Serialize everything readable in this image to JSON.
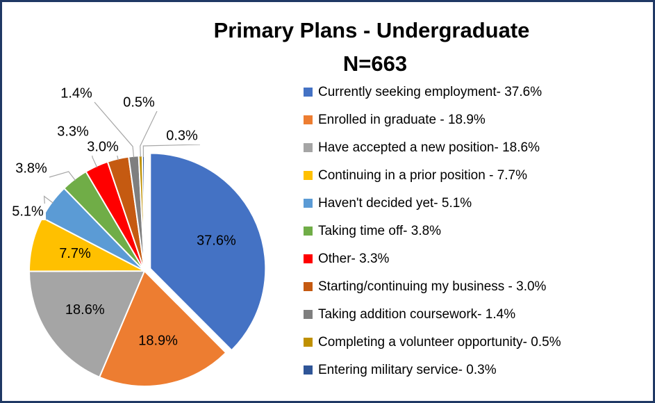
{
  "chart_data": {
    "type": "pie",
    "title": "Primary Plans - Undergraduate",
    "subtitle": "N=663",
    "categories": [
      "Currently seeking employment- 37.6%",
      "Enrolled in graduate - 18.9%",
      "Have accepted a new position- 18.6%",
      "Continuing in a prior position - 7.7%",
      "Haven't decided yet- 5.1%",
      "Taking time off- 3.8%",
      "Other- 3.3%",
      "Starting/continuing my business - 3.0%",
      "Taking addition coursework- 1.4%",
      "Completing a volunteer opportunity- 0.5%",
      "Entering military service- 0.3%"
    ],
    "values": [
      37.6,
      18.9,
      18.6,
      7.7,
      5.1,
      3.8,
      3.3,
      3.0,
      1.4,
      0.5,
      0.3
    ],
    "value_labels": [
      "37.6%",
      "18.9%",
      "18.6%",
      "7.7%",
      "5.1%",
      "3.8%",
      "3.3%",
      "3.0%",
      "1.4%",
      "0.5%",
      "0.3%"
    ],
    "colors": [
      "#4472c4",
      "#ed7d31",
      "#a5a5a5",
      "#ffc000",
      "#5b9bd5",
      "#70ad47",
      "#ff0000",
      "#c55a11",
      "#7f7f7f",
      "#bf9000",
      "#2f5597"
    ],
    "legend": "right"
  }
}
